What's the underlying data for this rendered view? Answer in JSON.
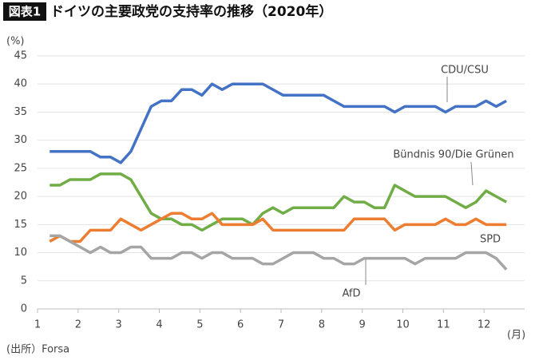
{
  "chart_data": {
    "type": "line",
    "title_badge": "図表1",
    "title": "ドイツの主要政党の支持率の推移（2020年）",
    "y_label": "(%)",
    "x_label": "(月)",
    "source": "(出所）Forsa",
    "x": [
      1.3,
      1.55,
      1.8,
      2.05,
      2.3,
      2.55,
      2.8,
      3.05,
      3.3,
      3.55,
      3.8,
      4.05,
      4.3,
      4.55,
      4.8,
      5.05,
      5.3,
      5.55,
      5.8,
      6.05,
      6.3,
      6.55,
      6.8,
      7.05,
      7.3,
      7.55,
      7.8,
      8.05,
      8.3,
      8.55,
      8.8,
      9.05,
      9.3,
      9.55,
      9.8,
      10.05,
      10.3,
      10.55,
      10.8,
      11.05,
      11.3,
      11.55,
      11.8,
      12.05,
      12.3,
      12.55
    ],
    "series": [
      {
        "name": "CDU/CSU",
        "color": "#4472c4",
        "values": [
          28,
          28,
          28,
          28,
          28,
          27,
          27,
          26,
          28,
          32,
          36,
          37,
          37,
          39,
          39,
          38,
          40,
          39,
          40,
          40,
          40,
          40,
          39,
          38,
          38,
          38,
          38,
          38,
          37,
          36,
          36,
          36,
          36,
          36,
          35,
          36,
          36,
          36,
          36,
          35,
          36,
          36,
          36,
          37,
          36,
          37
        ]
      },
      {
        "name": "Bündnis 90/Die Grünen",
        "color": "#70ad47",
        "values": [
          22,
          22,
          23,
          23,
          23,
          24,
          24,
          24,
          23,
          20,
          17,
          16,
          16,
          15,
          15,
          14,
          15,
          16,
          16,
          16,
          15,
          17,
          18,
          17,
          18,
          18,
          18,
          18,
          18,
          20,
          19,
          19,
          18,
          18,
          22,
          21,
          20,
          20,
          20,
          20,
          19,
          18,
          19,
          21,
          20,
          19
        ]
      },
      {
        "name": "SPD",
        "color": "#ed7d31",
        "values": [
          12,
          13,
          12,
          12,
          14,
          14,
          14,
          16,
          15,
          14,
          15,
          16,
          17,
          17,
          16,
          16,
          17,
          15,
          15,
          15,
          15,
          16,
          14,
          14,
          14,
          14,
          14,
          14,
          14,
          14,
          16,
          16,
          16,
          16,
          14,
          15,
          15,
          15,
          15,
          16,
          15,
          15,
          16,
          15,
          15,
          15
        ]
      },
      {
        "name": "AfD",
        "color": "#a5a5a5",
        "values": [
          13,
          13,
          12,
          11,
          10,
          11,
          10,
          10,
          11,
          11,
          9,
          9,
          9,
          10,
          10,
          9,
          10,
          10,
          9,
          9,
          9,
          8,
          8,
          9,
          10,
          10,
          10,
          9,
          9,
          8,
          8,
          9,
          9,
          9,
          9,
          9,
          8,
          9,
          9,
          9,
          9,
          10,
          10,
          10,
          9,
          7
        ]
      }
    ],
    "xlim": [
      1,
      13
    ],
    "xticks": [
      1,
      2,
      3,
      4,
      5,
      6,
      7,
      8,
      9,
      10,
      11,
      12
    ],
    "ylim": [
      0,
      45
    ],
    "yticks": [
      0,
      5,
      10,
      15,
      20,
      25,
      30,
      35,
      40,
      45
    ],
    "grid": true
  }
}
